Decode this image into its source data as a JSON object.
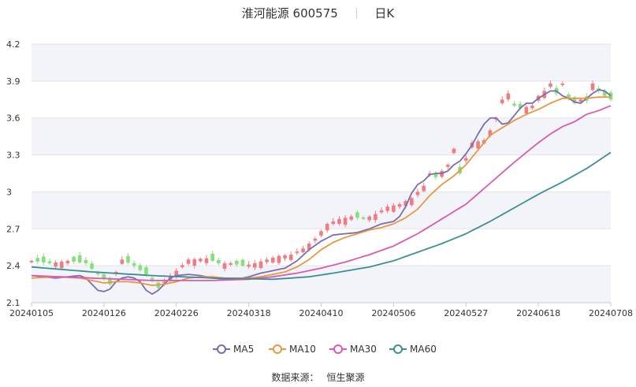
{
  "header": {
    "title": "淮河能源 600575",
    "period": "日K"
  },
  "source": {
    "label": "数据来源：",
    "provider": "恒生聚源"
  },
  "chart_data": {
    "type": "candlestick",
    "y_ticks": [
      "2.1",
      "2.4",
      "2.7",
      "3",
      "3.3",
      "3.6",
      "3.9",
      "4.2"
    ],
    "ylim": [
      2.1,
      4.2
    ],
    "x_ticks": [
      {
        "label": "20240105",
        "idx": 0
      },
      {
        "label": "20240126",
        "idx": 12
      },
      {
        "label": "20240226",
        "idx": 24
      },
      {
        "label": "20240318",
        "idx": 36
      },
      {
        "label": "20240410",
        "idx": 48
      },
      {
        "label": "20240506",
        "idx": 60
      },
      {
        "label": "20240527",
        "idx": 72
      },
      {
        "label": "20240618",
        "idx": 84
      },
      {
        "label": "20240708",
        "idx": 96
      }
    ],
    "candle_count": 97,
    "up_color": "#f07c82",
    "down_color": "#85e07a",
    "close_anchors": [
      [
        0,
        2.44
      ],
      [
        3,
        2.42
      ],
      [
        6,
        2.44
      ],
      [
        9,
        2.42
      ],
      [
        11,
        2.33
      ],
      [
        12,
        2.3
      ],
      [
        13,
        2.25
      ],
      [
        15,
        2.45
      ],
      [
        17,
        2.4
      ],
      [
        19,
        2.33
      ],
      [
        21,
        2.22
      ],
      [
        22,
        2.27
      ],
      [
        24,
        2.36
      ],
      [
        26,
        2.45
      ],
      [
        29,
        2.46
      ],
      [
        31,
        2.42
      ],
      [
        33,
        2.42
      ],
      [
        35,
        2.4
      ],
      [
        37,
        2.42
      ],
      [
        39,
        2.45
      ],
      [
        41,
        2.48
      ],
      [
        43,
        2.49
      ],
      [
        45,
        2.54
      ],
      [
        47,
        2.62
      ],
      [
        49,
        2.74
      ],
      [
        51,
        2.78
      ],
      [
        53,
        2.8
      ],
      [
        55,
        2.78
      ],
      [
        57,
        2.82
      ],
      [
        59,
        2.88
      ],
      [
        61,
        2.9
      ],
      [
        63,
        2.95
      ],
      [
        65,
        3.05
      ],
      [
        66,
        3.15
      ],
      [
        67,
        3.12
      ],
      [
        69,
        3.22
      ],
      [
        70,
        3.35
      ],
      [
        71,
        3.15
      ],
      [
        73,
        3.4
      ],
      [
        75,
        3.42
      ],
      [
        76,
        3.5
      ],
      [
        77,
        3.6
      ],
      [
        78,
        3.75
      ],
      [
        79,
        3.8
      ],
      [
        80,
        3.7
      ],
      [
        81,
        3.68
      ],
      [
        83,
        3.7
      ],
      [
        84,
        3.78
      ],
      [
        85,
        3.82
      ],
      [
        86,
        3.88
      ],
      [
        87,
        3.8
      ],
      [
        88,
        3.88
      ],
      [
        89,
        3.76
      ],
      [
        90,
        3.72
      ],
      [
        91,
        3.75
      ],
      [
        92,
        3.74
      ],
      [
        93,
        3.88
      ],
      [
        94,
        3.82
      ],
      [
        95,
        3.78
      ],
      [
        96,
        3.75
      ]
    ],
    "ma_anchors": {
      "MA5": [
        [
          0,
          2.32
        ],
        [
          2,
          2.31
        ],
        [
          4,
          2.3
        ],
        [
          6,
          2.31
        ],
        [
          8,
          2.32
        ],
        [
          9,
          2.3
        ],
        [
          10,
          2.25
        ],
        [
          11,
          2.2
        ],
        [
          12,
          2.19
        ],
        [
          13,
          2.21
        ],
        [
          14,
          2.27
        ],
        [
          15,
          2.3
        ],
        [
          16,
          2.31
        ],
        [
          17,
          2.3
        ],
        [
          18,
          2.27
        ],
        [
          19,
          2.2
        ],
        [
          20,
          2.17
        ],
        [
          21,
          2.2
        ],
        [
          22,
          2.25
        ],
        [
          23,
          2.3
        ],
        [
          24,
          2.32
        ],
        [
          26,
          2.33
        ],
        [
          28,
          2.32
        ],
        [
          30,
          2.3
        ],
        [
          32,
          2.29
        ],
        [
          34,
          2.29
        ],
        [
          36,
          2.31
        ],
        [
          38,
          2.34
        ],
        [
          40,
          2.36
        ],
        [
          42,
          2.38
        ],
        [
          44,
          2.44
        ],
        [
          46,
          2.53
        ],
        [
          48,
          2.6
        ],
        [
          50,
          2.65
        ],
        [
          52,
          2.66
        ],
        [
          54,
          2.67
        ],
        [
          56,
          2.7
        ],
        [
          58,
          2.74
        ],
        [
          60,
          2.76
        ],
        [
          61,
          2.8
        ],
        [
          62,
          2.88
        ],
        [
          63,
          2.99
        ],
        [
          64,
          3.06
        ],
        [
          65,
          3.09
        ],
        [
          66,
          3.14
        ],
        [
          67,
          3.15
        ],
        [
          68,
          3.15
        ],
        [
          69,
          3.17
        ],
        [
          70,
          3.22
        ],
        [
          71,
          3.25
        ],
        [
          72,
          3.31
        ],
        [
          73,
          3.38
        ],
        [
          74,
          3.47
        ],
        [
          75,
          3.55
        ],
        [
          76,
          3.6
        ],
        [
          77,
          3.6
        ],
        [
          78,
          3.55
        ],
        [
          79,
          3.56
        ],
        [
          80,
          3.62
        ],
        [
          81,
          3.68
        ],
        [
          82,
          3.72
        ],
        [
          83,
          3.72
        ],
        [
          84,
          3.76
        ],
        [
          85,
          3.79
        ],
        [
          86,
          3.82
        ],
        [
          87,
          3.82
        ],
        [
          88,
          3.78
        ],
        [
          89,
          3.76
        ],
        [
          90,
          3.73
        ],
        [
          91,
          3.72
        ],
        [
          92,
          3.76
        ],
        [
          93,
          3.8
        ],
        [
          94,
          3.83
        ],
        [
          95,
          3.82
        ],
        [
          96,
          3.78
        ]
      ],
      "MA10": [
        [
          0,
          2.3
        ],
        [
          4,
          2.31
        ],
        [
          8,
          2.3
        ],
        [
          10,
          2.28
        ],
        [
          12,
          2.26
        ],
        [
          14,
          2.27
        ],
        [
          16,
          2.27
        ],
        [
          18,
          2.26
        ],
        [
          20,
          2.24
        ],
        [
          22,
          2.25
        ],
        [
          24,
          2.27
        ],
        [
          26,
          2.3
        ],
        [
          28,
          2.31
        ],
        [
          30,
          2.31
        ],
        [
          32,
          2.3
        ],
        [
          34,
          2.3
        ],
        [
          36,
          2.3
        ],
        [
          38,
          2.31
        ],
        [
          40,
          2.33
        ],
        [
          42,
          2.35
        ],
        [
          44,
          2.39
        ],
        [
          46,
          2.45
        ],
        [
          48,
          2.53
        ],
        [
          50,
          2.59
        ],
        [
          52,
          2.63
        ],
        [
          54,
          2.66
        ],
        [
          56,
          2.69
        ],
        [
          58,
          2.71
        ],
        [
          60,
          2.74
        ],
        [
          62,
          2.79
        ],
        [
          64,
          2.86
        ],
        [
          66,
          2.97
        ],
        [
          68,
          3.06
        ],
        [
          70,
          3.13
        ],
        [
          72,
          3.22
        ],
        [
          74,
          3.34
        ],
        [
          76,
          3.46
        ],
        [
          78,
          3.52
        ],
        [
          80,
          3.58
        ],
        [
          82,
          3.63
        ],
        [
          84,
          3.67
        ],
        [
          86,
          3.72
        ],
        [
          88,
          3.76
        ],
        [
          90,
          3.76
        ],
        [
          92,
          3.76
        ],
        [
          94,
          3.77
        ],
        [
          96,
          3.77
        ]
      ],
      "MA30": [
        [
          0,
          2.32
        ],
        [
          10,
          2.3
        ],
        [
          20,
          2.28
        ],
        [
          30,
          2.28
        ],
        [
          36,
          2.29
        ],
        [
          40,
          2.31
        ],
        [
          44,
          2.34
        ],
        [
          48,
          2.38
        ],
        [
          52,
          2.43
        ],
        [
          56,
          2.49
        ],
        [
          60,
          2.56
        ],
        [
          64,
          2.66
        ],
        [
          68,
          2.78
        ],
        [
          72,
          2.9
        ],
        [
          76,
          3.07
        ],
        [
          80,
          3.24
        ],
        [
          84,
          3.4
        ],
        [
          86,
          3.47
        ],
        [
          88,
          3.53
        ],
        [
          90,
          3.57
        ],
        [
          92,
          3.63
        ],
        [
          94,
          3.66
        ],
        [
          96,
          3.7
        ]
      ],
      "MA60": [
        [
          0,
          2.39
        ],
        [
          10,
          2.35
        ],
        [
          20,
          2.32
        ],
        [
          30,
          2.3
        ],
        [
          40,
          2.29
        ],
        [
          46,
          2.31
        ],
        [
          50,
          2.34
        ],
        [
          56,
          2.39
        ],
        [
          60,
          2.44
        ],
        [
          64,
          2.51
        ],
        [
          68,
          2.58
        ],
        [
          72,
          2.66
        ],
        [
          76,
          2.76
        ],
        [
          80,
          2.87
        ],
        [
          84,
          2.98
        ],
        [
          88,
          3.08
        ],
        [
          92,
          3.19
        ],
        [
          96,
          3.32
        ]
      ]
    },
    "series": [
      {
        "name": "MA5",
        "color": "#7b6bb1"
      },
      {
        "name": "MA10",
        "color": "#e9973f"
      },
      {
        "name": "MA30",
        "color": "#d95bb0"
      },
      {
        "name": "MA60",
        "color": "#3b8f94"
      }
    ],
    "legend_position": "bottom",
    "grid": true
  }
}
